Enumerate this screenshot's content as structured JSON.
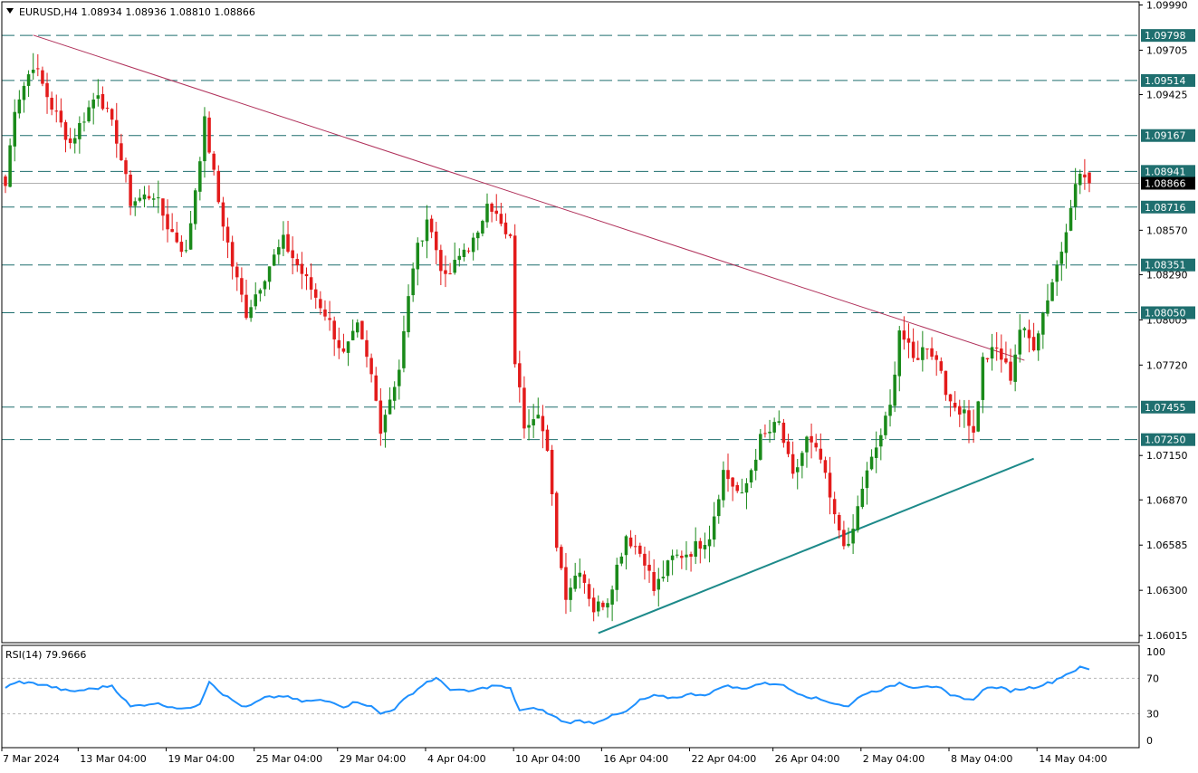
{
  "header": {
    "symbol_line": "EURUSD,H4  1.08934 1.08936 1.08810 1.08866",
    "dropdown_icon": "triangle-down-icon"
  },
  "colors": {
    "bull": "#1a8a1a",
    "bear": "#e31b1b",
    "level_line": "#1f6f6f",
    "level_tag": "#1f6f6f",
    "resistance_line": "#b0305a",
    "support_line": "#1d8a8a",
    "rsi_line": "#1e90ff",
    "bid_tag": "#000000",
    "frame": "#000000",
    "rsi_guide": "#b8b8b8"
  },
  "chart_data": [
    {
      "type": "candlestick",
      "symbol": "EURUSD",
      "timeframe": "H4",
      "ohlc_header": {
        "open": 1.08934,
        "high": 1.08936,
        "low": 1.0881,
        "close": 1.08866
      },
      "current_price": 1.08866,
      "y_ticks": [
        1.0999,
        1.09705,
        1.09425,
        1.0857,
        1.0829,
        1.08005,
        1.0772,
        1.0715,
        1.0687,
        1.06585,
        1.063,
        1.06015
      ],
      "ylim": [
        1.0597,
        1.1001
      ],
      "x_tick_labels": [
        "7 Mar 2024",
        "13 Mar 04:00",
        "19 Mar 04:00",
        "25 Mar 04:00",
        "29 Mar 04:00",
        "4 Apr 04:00",
        "10 Apr 04:00",
        "16 Apr 04:00",
        "22 Apr 04:00",
        "26 Apr 04:00",
        "2 May 04:00",
        "8 May 04:00",
        "14 May 04:00"
      ],
      "horizontal_levels": [
        1.09798,
        1.09514,
        1.09167,
        1.08941,
        1.08716,
        1.08351,
        1.0805,
        1.07455,
        1.0725
      ],
      "trendlines": [
        {
          "role": "resistance",
          "from": {
            "x": 6,
            "y": 1.098
          },
          "to": {
            "x": 220,
            "y": 1.0775
          }
        },
        {
          "role": "support",
          "from": {
            "x": 128,
            "y": 1.0603
          },
          "to": {
            "x": 222,
            "y": 1.0713
          }
        }
      ],
      "anchors": [
        {
          "x": 0,
          "y": 1.0885
        },
        {
          "x": 2,
          "y": 1.0935
        },
        {
          "x": 6,
          "y": 1.0962
        },
        {
          "x": 10,
          "y": 1.0935
        },
        {
          "x": 14,
          "y": 1.0912
        },
        {
          "x": 20,
          "y": 1.0945
        },
        {
          "x": 24,
          "y": 1.0915
        },
        {
          "x": 27,
          "y": 1.0875
        },
        {
          "x": 32,
          "y": 1.088
        },
        {
          "x": 35,
          "y": 1.086
        },
        {
          "x": 39,
          "y": 1.0842
        },
        {
          "x": 43,
          "y": 1.0925
        },
        {
          "x": 46,
          "y": 1.0875
        },
        {
          "x": 49,
          "y": 1.0835
        },
        {
          "x": 52,
          "y": 1.0805
        },
        {
          "x": 57,
          "y": 1.0835
        },
        {
          "x": 60,
          "y": 1.085
        },
        {
          "x": 64,
          "y": 1.083
        },
        {
          "x": 69,
          "y": 1.0805
        },
        {
          "x": 73,
          "y": 1.0778
        },
        {
          "x": 76,
          "y": 1.0795
        },
        {
          "x": 79,
          "y": 1.0765
        },
        {
          "x": 81,
          "y": 1.0733
        },
        {
          "x": 85,
          "y": 1.077
        },
        {
          "x": 88,
          "y": 1.0835
        },
        {
          "x": 91,
          "y": 1.0865
        },
        {
          "x": 95,
          "y": 1.0825
        },
        {
          "x": 99,
          "y": 1.0845
        },
        {
          "x": 102,
          "y": 1.0852
        },
        {
          "x": 104,
          "y": 1.0878
        },
        {
          "x": 108,
          "y": 1.0853
        },
        {
          "x": 109,
          "y": 1.085
        },
        {
          "x": 110,
          "y": 1.0775
        },
        {
          "x": 112,
          "y": 1.0735
        },
        {
          "x": 115,
          "y": 1.0745
        },
        {
          "x": 117,
          "y": 1.0715
        },
        {
          "x": 119,
          "y": 1.066
        },
        {
          "x": 121,
          "y": 1.0628
        },
        {
          "x": 124,
          "y": 1.0645
        },
        {
          "x": 127,
          "y": 1.0618
        },
        {
          "x": 130,
          "y": 1.0625
        },
        {
          "x": 134,
          "y": 1.0665
        },
        {
          "x": 138,
          "y": 1.065
        },
        {
          "x": 140,
          "y": 1.063
        },
        {
          "x": 144,
          "y": 1.065
        },
        {
          "x": 148,
          "y": 1.0655
        },
        {
          "x": 152,
          "y": 1.0665
        },
        {
          "x": 155,
          "y": 1.0705
        },
        {
          "x": 159,
          "y": 1.0688
        },
        {
          "x": 163,
          "y": 1.0725
        },
        {
          "x": 167,
          "y": 1.0735
        },
        {
          "x": 170,
          "y": 1.07
        },
        {
          "x": 173,
          "y": 1.0725
        },
        {
          "x": 176,
          "y": 1.0712
        },
        {
          "x": 179,
          "y": 1.0675
        },
        {
          "x": 182,
          "y": 1.0655
        },
        {
          "x": 185,
          "y": 1.0695
        },
        {
          "x": 188,
          "y": 1.072
        },
        {
          "x": 191,
          "y": 1.0745
        },
        {
          "x": 193,
          "y": 1.0795
        },
        {
          "x": 196,
          "y": 1.0775
        },
        {
          "x": 199,
          "y": 1.0785
        },
        {
          "x": 202,
          "y": 1.077
        },
        {
          "x": 204,
          "y": 1.0745
        },
        {
          "x": 207,
          "y": 1.0745
        },
        {
          "x": 209,
          "y": 1.0728
        },
        {
          "x": 211,
          "y": 1.0775
        },
        {
          "x": 214,
          "y": 1.0782
        },
        {
          "x": 217,
          "y": 1.0765
        },
        {
          "x": 219,
          "y": 1.0795
        },
        {
          "x": 222,
          "y": 1.0785
        },
        {
          "x": 224,
          "y": 1.0805
        },
        {
          "x": 226,
          "y": 1.0825
        },
        {
          "x": 228,
          "y": 1.0845
        },
        {
          "x": 230,
          "y": 1.0875
        },
        {
          "x": 232,
          "y": 1.0893
        },
        {
          "x": 234,
          "y": 1.08866
        }
      ]
    },
    {
      "type": "line",
      "title": "RSI(14) 79.9666",
      "indicator": "RSI",
      "period": 14,
      "last_value": 79.9666,
      "ylim": [
        0,
        100
      ],
      "y_ticks": [
        100,
        70,
        30,
        0
      ],
      "guide_levels": [
        70,
        30
      ],
      "rsi_anchors": [
        {
          "x": 0,
          "y": 60
        },
        {
          "x": 3,
          "y": 66
        },
        {
          "x": 8,
          "y": 63
        },
        {
          "x": 14,
          "y": 55
        },
        {
          "x": 20,
          "y": 59
        },
        {
          "x": 23,
          "y": 62
        },
        {
          "x": 27,
          "y": 38
        },
        {
          "x": 32,
          "y": 42
        },
        {
          "x": 36,
          "y": 38
        },
        {
          "x": 39,
          "y": 35
        },
        {
          "x": 42,
          "y": 42
        },
        {
          "x": 44,
          "y": 67
        },
        {
          "x": 47,
          "y": 52
        },
        {
          "x": 50,
          "y": 42
        },
        {
          "x": 52,
          "y": 37
        },
        {
          "x": 56,
          "y": 48
        },
        {
          "x": 60,
          "y": 50
        },
        {
          "x": 64,
          "y": 44
        },
        {
          "x": 68,
          "y": 45
        },
        {
          "x": 71,
          "y": 43
        },
        {
          "x": 73,
          "y": 38
        },
        {
          "x": 76,
          "y": 44
        },
        {
          "x": 79,
          "y": 38
        },
        {
          "x": 81,
          "y": 30
        },
        {
          "x": 84,
          "y": 36
        },
        {
          "x": 87,
          "y": 50
        },
        {
          "x": 91,
          "y": 66
        },
        {
          "x": 93,
          "y": 70
        },
        {
          "x": 96,
          "y": 58
        },
        {
          "x": 100,
          "y": 55
        },
        {
          "x": 104,
          "y": 60
        },
        {
          "x": 106,
          "y": 62
        },
        {
          "x": 109,
          "y": 58
        },
        {
          "x": 111,
          "y": 34
        },
        {
          "x": 115,
          "y": 36
        },
        {
          "x": 118,
          "y": 28
        },
        {
          "x": 121,
          "y": 20
        },
        {
          "x": 124,
          "y": 22
        },
        {
          "x": 127,
          "y": 20
        },
        {
          "x": 130,
          "y": 26
        },
        {
          "x": 134,
          "y": 32
        },
        {
          "x": 137,
          "y": 45
        },
        {
          "x": 140,
          "y": 50
        },
        {
          "x": 144,
          "y": 48
        },
        {
          "x": 148,
          "y": 52
        },
        {
          "x": 152,
          "y": 52
        },
        {
          "x": 155,
          "y": 62
        },
        {
          "x": 159,
          "y": 58
        },
        {
          "x": 163,
          "y": 64
        },
        {
          "x": 167,
          "y": 64
        },
        {
          "x": 170,
          "y": 56
        },
        {
          "x": 173,
          "y": 50
        },
        {
          "x": 176,
          "y": 46
        },
        {
          "x": 179,
          "y": 42
        },
        {
          "x": 182,
          "y": 38
        },
        {
          "x": 185,
          "y": 52
        },
        {
          "x": 188,
          "y": 56
        },
        {
          "x": 191,
          "y": 60
        },
        {
          "x": 193,
          "y": 65
        },
        {
          "x": 196,
          "y": 60
        },
        {
          "x": 199,
          "y": 62
        },
        {
          "x": 202,
          "y": 58
        },
        {
          "x": 204,
          "y": 50
        },
        {
          "x": 207,
          "y": 48
        },
        {
          "x": 209,
          "y": 45
        },
        {
          "x": 211,
          "y": 58
        },
        {
          "x": 214,
          "y": 60
        },
        {
          "x": 217,
          "y": 56
        },
        {
          "x": 219,
          "y": 58
        },
        {
          "x": 222,
          "y": 60
        },
        {
          "x": 224,
          "y": 63
        },
        {
          "x": 226,
          "y": 66
        },
        {
          "x": 228,
          "y": 72
        },
        {
          "x": 230,
          "y": 77
        },
        {
          "x": 232,
          "y": 82
        },
        {
          "x": 234,
          "y": 80
        }
      ]
    }
  ]
}
